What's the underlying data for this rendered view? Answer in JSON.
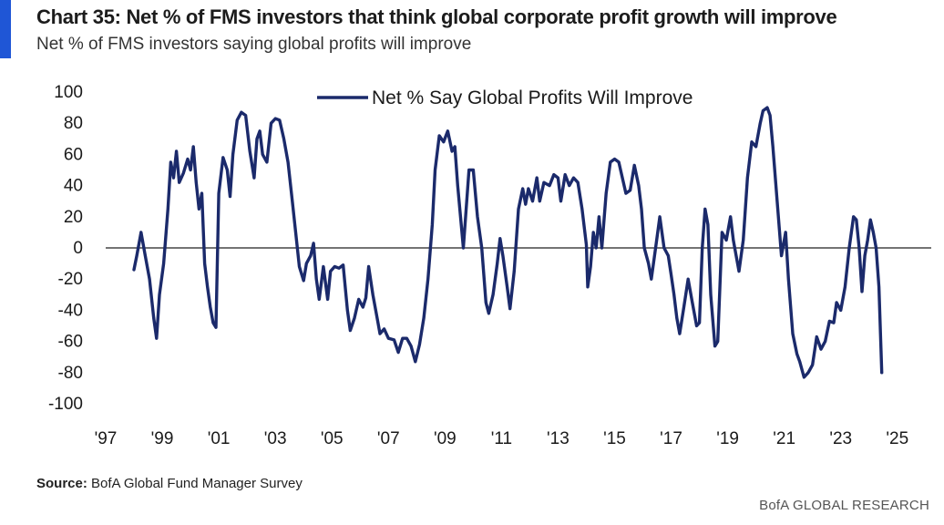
{
  "header": {
    "title": "Chart 35: Net % of FMS investors that think global corporate profit growth will improve",
    "subtitle": "Net % of FMS investors saying global profits will improve"
  },
  "footer": {
    "source_label": "Source:",
    "source_text": "BofA Global Fund Manager Survey",
    "brand": "BofA GLOBAL RESEARCH"
  },
  "colors": {
    "accent": "#1f56d6",
    "series": "#1b2a6b"
  },
  "chart_data": {
    "type": "line",
    "title": "Chart 35: Net % of FMS investors that think global corporate profit growth will improve",
    "subtitle": "Net % of FMS investors saying global profits will improve",
    "xlabel": "",
    "ylabel": "",
    "ylim": [
      -100,
      100
    ],
    "xlim": [
      1997,
      2026.2
    ],
    "yticks": [
      100,
      80,
      60,
      40,
      20,
      0,
      -20,
      -40,
      -60,
      -80,
      -100
    ],
    "ytick_labels": [
      "100",
      "80",
      "60",
      "40",
      "20",
      "0",
      "-20",
      "-40",
      "-60",
      "-80",
      "-100"
    ],
    "xticks": [
      1997,
      1999,
      2001,
      2003,
      2005,
      2007,
      2009,
      2011,
      2013,
      2015,
      2017,
      2019,
      2021,
      2023,
      2025
    ],
    "xtick_labels": [
      "'97",
      "'99",
      "'01",
      "'03",
      "'05",
      "'07",
      "'09",
      "'11",
      "'13",
      "'15",
      "'17",
      "'19",
      "'21",
      "'23",
      "'25"
    ],
    "zero_line": true,
    "grid": false,
    "legend_position": "top-center",
    "series": [
      {
        "name": "Net % Say Global Profits Will Improve",
        "points": [
          [
            1998.0,
            -14
          ],
          [
            1998.1,
            -5
          ],
          [
            1998.25,
            10
          ],
          [
            1998.4,
            -5
          ],
          [
            1998.55,
            -20
          ],
          [
            1998.7,
            -45
          ],
          [
            1998.8,
            -58
          ],
          [
            1998.9,
            -30
          ],
          [
            1999.05,
            -10
          ],
          [
            1999.2,
            25
          ],
          [
            1999.3,
            55
          ],
          [
            1999.4,
            45
          ],
          [
            1999.5,
            62
          ],
          [
            1999.6,
            42
          ],
          [
            1999.75,
            48
          ],
          [
            1999.9,
            57
          ],
          [
            2000.0,
            50
          ],
          [
            2000.1,
            65
          ],
          [
            2000.2,
            42
          ],
          [
            2000.3,
            25
          ],
          [
            2000.4,
            35
          ],
          [
            2000.5,
            -10
          ],
          [
            2000.6,
            -25
          ],
          [
            2000.7,
            -38
          ],
          [
            2000.8,
            -48
          ],
          [
            2000.9,
            -51
          ],
          [
            2001.0,
            35
          ],
          [
            2001.15,
            58
          ],
          [
            2001.3,
            50
          ],
          [
            2001.4,
            33
          ],
          [
            2001.5,
            60
          ],
          [
            2001.65,
            82
          ],
          [
            2001.8,
            87
          ],
          [
            2001.95,
            85
          ],
          [
            2002.1,
            62
          ],
          [
            2002.25,
            45
          ],
          [
            2002.35,
            70
          ],
          [
            2002.45,
            75
          ],
          [
            2002.55,
            60
          ],
          [
            2002.7,
            55
          ],
          [
            2002.85,
            80
          ],
          [
            2003.0,
            83
          ],
          [
            2003.15,
            82
          ],
          [
            2003.3,
            70
          ],
          [
            2003.45,
            55
          ],
          [
            2003.6,
            30
          ],
          [
            2003.75,
            5
          ],
          [
            2003.85,
            -12
          ],
          [
            2004.0,
            -21
          ],
          [
            2004.1,
            -10
          ],
          [
            2004.25,
            -5
          ],
          [
            2004.35,
            3
          ],
          [
            2004.45,
            -20
          ],
          [
            2004.55,
            -33
          ],
          [
            2004.7,
            -12
          ],
          [
            2004.85,
            -33
          ],
          [
            2004.95,
            -15
          ],
          [
            2005.1,
            -12
          ],
          [
            2005.25,
            -13
          ],
          [
            2005.4,
            -11
          ],
          [
            2005.55,
            -40
          ],
          [
            2005.65,
            -53
          ],
          [
            2005.8,
            -45
          ],
          [
            2005.95,
            -33
          ],
          [
            2006.1,
            -38
          ],
          [
            2006.2,
            -32
          ],
          [
            2006.3,
            -12
          ],
          [
            2006.45,
            -30
          ],
          [
            2006.6,
            -45
          ],
          [
            2006.7,
            -55
          ],
          [
            2006.85,
            -52
          ],
          [
            2007.0,
            -58
          ],
          [
            2007.2,
            -59
          ],
          [
            2007.35,
            -67
          ],
          [
            2007.5,
            -58
          ],
          [
            2007.65,
            -58
          ],
          [
            2007.8,
            -63
          ],
          [
            2007.95,
            -73
          ],
          [
            2008.1,
            -62
          ],
          [
            2008.25,
            -45
          ],
          [
            2008.4,
            -20
          ],
          [
            2008.55,
            15
          ],
          [
            2008.65,
            50
          ],
          [
            2008.8,
            72
          ],
          [
            2008.95,
            68
          ],
          [
            2009.1,
            75
          ],
          [
            2009.25,
            62
          ],
          [
            2009.35,
            65
          ],
          [
            2009.45,
            40
          ],
          [
            2009.55,
            20
          ],
          [
            2009.65,
            0
          ],
          [
            2009.75,
            25
          ],
          [
            2009.85,
            50
          ],
          [
            2010.0,
            50
          ],
          [
            2010.15,
            20
          ],
          [
            2010.3,
            0
          ],
          [
            2010.45,
            -35
          ],
          [
            2010.55,
            -42
          ],
          [
            2010.7,
            -30
          ],
          [
            2010.85,
            -10
          ],
          [
            2010.95,
            6
          ],
          [
            2011.05,
            -5
          ],
          [
            2011.2,
            -25
          ],
          [
            2011.3,
            -39
          ],
          [
            2011.45,
            -15
          ],
          [
            2011.6,
            25
          ],
          [
            2011.75,
            38
          ],
          [
            2011.85,
            28
          ],
          [
            2011.95,
            38
          ],
          [
            2012.1,
            30
          ],
          [
            2012.25,
            45
          ],
          [
            2012.35,
            30
          ],
          [
            2012.5,
            42
          ],
          [
            2012.7,
            40
          ],
          [
            2012.85,
            47
          ],
          [
            2013.0,
            45
          ],
          [
            2013.1,
            30
          ],
          [
            2013.25,
            47
          ],
          [
            2013.4,
            40
          ],
          [
            2013.55,
            45
          ],
          [
            2013.7,
            42
          ],
          [
            2013.85,
            25
          ],
          [
            2014.0,
            2
          ],
          [
            2014.05,
            -25
          ],
          [
            2014.15,
            -12
          ],
          [
            2014.25,
            10
          ],
          [
            2014.35,
            0
          ],
          [
            2014.45,
            20
          ],
          [
            2014.55,
            0
          ],
          [
            2014.7,
            35
          ],
          [
            2014.85,
            55
          ],
          [
            2015.0,
            57
          ],
          [
            2015.15,
            55
          ],
          [
            2015.3,
            43
          ],
          [
            2015.4,
            35
          ],
          [
            2015.55,
            37
          ],
          [
            2015.7,
            53
          ],
          [
            2015.85,
            40
          ],
          [
            2015.95,
            25
          ],
          [
            2016.05,
            0
          ],
          [
            2016.2,
            -10
          ],
          [
            2016.3,
            -20
          ],
          [
            2016.45,
            0
          ],
          [
            2016.6,
            20
          ],
          [
            2016.75,
            0
          ],
          [
            2016.9,
            -5
          ],
          [
            2017.0,
            -17
          ],
          [
            2017.1,
            -30
          ],
          [
            2017.2,
            -45
          ],
          [
            2017.3,
            -55
          ],
          [
            2017.45,
            -38
          ],
          [
            2017.6,
            -20
          ],
          [
            2017.75,
            -35
          ],
          [
            2017.9,
            -50
          ],
          [
            2018.0,
            -48
          ],
          [
            2018.1,
            0
          ],
          [
            2018.2,
            25
          ],
          [
            2018.3,
            15
          ],
          [
            2018.4,
            -30
          ],
          [
            2018.55,
            -63
          ],
          [
            2018.65,
            -60
          ],
          [
            2018.8,
            10
          ],
          [
            2018.95,
            5
          ],
          [
            2019.1,
            20
          ],
          [
            2019.2,
            5
          ],
          [
            2019.3,
            -5
          ],
          [
            2019.4,
            -15
          ],
          [
            2019.55,
            5
          ],
          [
            2019.7,
            45
          ],
          [
            2019.85,
            68
          ],
          [
            2020.0,
            65
          ],
          [
            2020.15,
            80
          ],
          [
            2020.25,
            88
          ],
          [
            2020.4,
            90
          ],
          [
            2020.5,
            85
          ],
          [
            2020.6,
            65
          ],
          [
            2020.75,
            30
          ],
          [
            2020.9,
            -5
          ],
          [
            2021.05,
            10
          ],
          [
            2021.15,
            -20
          ],
          [
            2021.3,
            -55
          ],
          [
            2021.45,
            -68
          ],
          [
            2021.55,
            -73
          ],
          [
            2021.7,
            -83
          ],
          [
            2021.85,
            -80
          ],
          [
            2022.0,
            -75
          ],
          [
            2022.15,
            -57
          ],
          [
            2022.3,
            -65
          ],
          [
            2022.45,
            -60
          ],
          [
            2022.6,
            -47
          ],
          [
            2022.75,
            -48
          ],
          [
            2022.85,
            -35
          ],
          [
            2023.0,
            -40
          ],
          [
            2023.15,
            -25
          ],
          [
            2023.3,
            0
          ],
          [
            2023.45,
            20
          ],
          [
            2023.55,
            18
          ],
          [
            2023.65,
            0
          ],
          [
            2023.75,
            -28
          ],
          [
            2023.85,
            -5
          ],
          [
            2023.95,
            5
          ],
          [
            2024.05,
            18
          ],
          [
            2024.15,
            10
          ],
          [
            2024.25,
            0
          ],
          [
            2024.35,
            -25
          ],
          [
            2024.45,
            -80
          ]
        ]
      }
    ]
  }
}
